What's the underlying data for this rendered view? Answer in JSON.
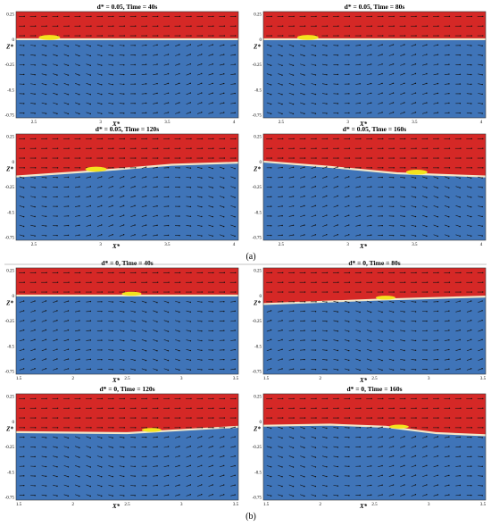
{
  "colors": {
    "air": "#d52826",
    "water": "#3f74b8",
    "interface": "#f1e7c9",
    "object": "#f4e31e",
    "arrow": "#111111"
  },
  "captions": {
    "a": "(a)",
    "b": "(b)"
  },
  "x_axis_label": "X*",
  "z_axis_label": "Z*",
  "panels": [
    {
      "title": "d* = 0.05, Time = 40s",
      "xticks": [
        "2.5",
        "3",
        "3.5",
        "4"
      ],
      "zticks": [
        "0.25",
        "0",
        "-0.25",
        "-0.5",
        "-0.75"
      ]
    },
    {
      "title": "d* = 0.05, Time = 80s",
      "xticks": [
        "2.5",
        "3",
        "3.5",
        "4"
      ],
      "zticks": [
        "0.25",
        "0",
        "-0.25",
        "-0.5",
        "-0.75"
      ]
    },
    {
      "title": "d* = 0.05, Time = 120s",
      "xticks": [
        "2.5",
        "3",
        "3.5",
        "4"
      ],
      "zticks": [
        "0.25",
        "0",
        "-0.25",
        "-0.5",
        "-0.75"
      ]
    },
    {
      "title": "d* = 0.05, Time = 160s",
      "xticks": [
        "2.5",
        "3",
        "3.5",
        "4"
      ],
      "zticks": [
        "0.25",
        "0",
        "-0.25",
        "-0.5",
        "-0.75"
      ]
    },
    {
      "title": "d* = 0, Time = 40s",
      "xticks": [
        "1.5",
        "2",
        "2.5",
        "3",
        "3.5"
      ],
      "zticks": [
        "0.25",
        "0",
        "-0.25",
        "-0.5",
        "-0.75"
      ]
    },
    {
      "title": "d* = 0, Time = 80s",
      "xticks": [
        "1.5",
        "2",
        "2.5",
        "3",
        "3.5"
      ],
      "zticks": [
        "0.25",
        "0",
        "-0.25",
        "-0.5",
        "-0.75"
      ]
    },
    {
      "title": "d* = 0, Time = 120s",
      "xticks": [
        "1.5",
        "2",
        "2.5",
        "3",
        "3.5"
      ],
      "zticks": [
        "0.25",
        "0",
        "-0.25",
        "-0.5",
        "-0.75"
      ]
    },
    {
      "title": "d* = 0, Time = 160s",
      "xticks": [
        "1.5",
        "2",
        "2.5",
        "3",
        "3.5"
      ],
      "zticks": [
        "0.25",
        "0",
        "-0.25",
        "-0.5",
        "-0.75"
      ]
    }
  ]
}
